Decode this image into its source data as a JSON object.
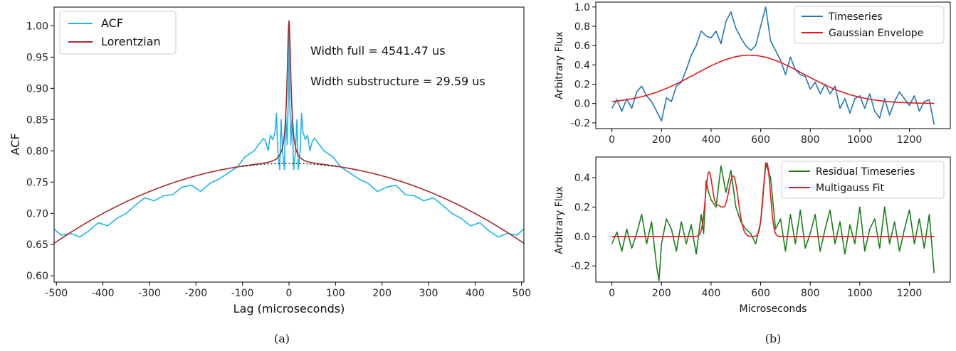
{
  "captions": {
    "a": "(a)",
    "b": "(b)"
  },
  "chart_data": [
    {
      "type": "line",
      "panel": "a",
      "xlabel": "Lag (microseconds)",
      "ylabel": "ACF",
      "xlim": [
        -505,
        505
      ],
      "ylim": [
        0.59,
        1.03
      ],
      "xticks": [
        -500,
        -400,
        -300,
        -200,
        -100,
        0,
        100,
        200,
        300,
        400,
        500
      ],
      "yticks": [
        0.6,
        0.65,
        0.7,
        0.75,
        0.8,
        0.85,
        0.9,
        0.95,
        1.0
      ],
      "legend": {
        "placement": "upper-left",
        "entries": [
          "ACF",
          "Lorentzian"
        ]
      },
      "annotations": [
        "Width full = 4541.47 us",
        "Width substructure = 29.59 us"
      ],
      "series": [
        {
          "name": "ACF",
          "color": "#1bb6ec",
          "x": [
            -505,
            -490,
            -470,
            -450,
            -430,
            -410,
            -390,
            -370,
            -350,
            -330,
            -310,
            -290,
            -270,
            -250,
            -230,
            -210,
            -190,
            -170,
            -150,
            -130,
            -110,
            -95,
            -85,
            -75,
            -65,
            -55,
            -50,
            -45,
            -40,
            -35,
            -30,
            -27,
            -24,
            -20,
            -17,
            -14,
            -10,
            -7,
            -4,
            -1,
            0,
            1,
            4,
            7,
            10,
            14,
            17,
            20,
            24,
            27,
            30,
            35,
            40,
            45,
            50,
            55,
            65,
            75,
            85,
            95,
            110,
            130,
            150,
            170,
            190,
            210,
            230,
            250,
            270,
            290,
            310,
            330,
            350,
            370,
            390,
            410,
            430,
            450,
            470,
            490,
            505
          ],
          "y": [
            0.675,
            0.665,
            0.668,
            0.662,
            0.672,
            0.685,
            0.68,
            0.692,
            0.7,
            0.713,
            0.725,
            0.72,
            0.728,
            0.73,
            0.742,
            0.745,
            0.735,
            0.748,
            0.755,
            0.765,
            0.775,
            0.79,
            0.795,
            0.8,
            0.81,
            0.82,
            0.815,
            0.8,
            0.825,
            0.818,
            0.83,
            0.86,
            0.8,
            0.77,
            0.85,
            0.8,
            0.77,
            0.86,
            0.81,
            0.9,
            1.0,
            0.9,
            0.81,
            0.86,
            0.77,
            0.8,
            0.85,
            0.77,
            0.8,
            0.86,
            0.83,
            0.818,
            0.825,
            0.8,
            0.815,
            0.82,
            0.81,
            0.8,
            0.795,
            0.79,
            0.775,
            0.765,
            0.755,
            0.748,
            0.735,
            0.742,
            0.745,
            0.73,
            0.728,
            0.72,
            0.725,
            0.713,
            0.7,
            0.692,
            0.68,
            0.685,
            0.672,
            0.662,
            0.668,
            0.665,
            0.675
          ]
        },
        {
          "name": "Lorentzian",
          "color": "#a52a2a",
          "model": "envelope_plus_lorentzian",
          "envelope_peak": 0.78,
          "envelope_at_505": 0.652,
          "lorentzian_amplitude": 0.228,
          "lorentzian_half_width": 5
        },
        {
          "name": "",
          "color": "#111111",
          "style": "dotted",
          "x": [
            -100,
            -50,
            0,
            50,
            100
          ],
          "y": [
            0.775,
            0.779,
            0.78,
            0.779,
            0.775
          ]
        }
      ]
    },
    {
      "type": "line",
      "panel": "b-top",
      "xlabel": "",
      "ylabel": "Arbitrary Flux",
      "xlim": [
        -65,
        1365
      ],
      "ylim": [
        -0.26,
        1.05
      ],
      "xticks": [
        0,
        200,
        400,
        600,
        800,
        1000,
        1200
      ],
      "yticks": [
        -0.2,
        0.0,
        0.2,
        0.4,
        0.6,
        0.8,
        1.0
      ],
      "legend": {
        "placement": "upper-right",
        "entries": [
          "Timeseries",
          "Gaussian Envelope"
        ]
      },
      "series": [
        {
          "name": "Timeseries",
          "color": "#1f77b4",
          "x": [
            0,
            20,
            40,
            60,
            80,
            100,
            120,
            140,
            160,
            180,
            200,
            220,
            240,
            260,
            280,
            300,
            320,
            340,
            360,
            380,
            400,
            420,
            440,
            460,
            480,
            500,
            520,
            540,
            560,
            580,
            600,
            620,
            640,
            660,
            680,
            700,
            720,
            740,
            760,
            780,
            800,
            820,
            840,
            860,
            880,
            900,
            920,
            940,
            960,
            980,
            1000,
            1020,
            1040,
            1060,
            1080,
            1100,
            1120,
            1140,
            1160,
            1180,
            1200,
            1220,
            1240,
            1260,
            1280,
            1300
          ],
          "y": [
            -0.05,
            0.04,
            -0.08,
            0.05,
            -0.05,
            0.12,
            0.18,
            0.08,
            0.02,
            -0.08,
            -0.18,
            0.06,
            0.02,
            0.18,
            0.22,
            0.35,
            0.5,
            0.6,
            0.75,
            0.7,
            0.68,
            0.75,
            0.62,
            0.85,
            0.95,
            0.78,
            0.68,
            0.6,
            0.55,
            0.6,
            0.8,
            1.0,
            0.65,
            0.55,
            0.45,
            0.3,
            0.48,
            0.35,
            0.3,
            0.28,
            0.15,
            0.22,
            0.1,
            0.2,
            0.1,
            0.18,
            -0.05,
            0.05,
            -0.1,
            0.05,
            0.08,
            -0.05,
            0.1,
            -0.08,
            -0.15,
            0.05,
            -0.12,
            0.02,
            0.12,
            0.05,
            -0.02,
            0.08,
            -0.08,
            0.02,
            0.04,
            -0.22
          ]
        },
        {
          "name": "Gaussian Envelope",
          "color": "#e31a1c",
          "model": "gaussian",
          "amplitude": 0.5,
          "center": 555,
          "sigma": 220
        }
      ]
    },
    {
      "type": "line",
      "panel": "b-bottom",
      "xlabel": "Microseconds",
      "ylabel": "Arbitrary Flux",
      "xlim": [
        -65,
        1365
      ],
      "ylim": [
        -0.31,
        0.54
      ],
      "xticks": [
        0,
        200,
        400,
        600,
        800,
        1000,
        1200
      ],
      "yticks": [
        -0.2,
        0.0,
        0.2,
        0.4
      ],
      "legend": {
        "placement": "upper-right",
        "entries": [
          "Residual Timeseries",
          "Multigauss Fit"
        ]
      },
      "series": [
        {
          "name": "Residual Timeseries",
          "color": "#1a7f1a",
          "x": [
            0,
            20,
            40,
            60,
            80,
            100,
            120,
            140,
            160,
            180,
            190,
            200,
            220,
            240,
            260,
            280,
            300,
            320,
            340,
            360,
            370,
            380,
            390,
            400,
            420,
            440,
            460,
            480,
            500,
            520,
            540,
            560,
            580,
            600,
            620,
            640,
            660,
            680,
            700,
            720,
            740,
            760,
            780,
            800,
            820,
            840,
            860,
            880,
            900,
            920,
            940,
            960,
            980,
            1000,
            1020,
            1040,
            1060,
            1080,
            1100,
            1120,
            1140,
            1160,
            1180,
            1200,
            1220,
            1240,
            1260,
            1280,
            1300
          ],
          "y": [
            -0.05,
            0.03,
            -0.1,
            0.05,
            -0.08,
            0.02,
            0.15,
            -0.05,
            0.1,
            -0.2,
            -0.3,
            -0.05,
            0.12,
            0.05,
            -0.1,
            0.1,
            -0.05,
            0.08,
            -0.12,
            0.15,
            0.02,
            0.38,
            0.3,
            0.25,
            0.2,
            0.48,
            0.3,
            0.45,
            0.2,
            0.1,
            0.05,
            0.02,
            -0.05,
            0.1,
            0.5,
            0.4,
            0.05,
            0.12,
            -0.1,
            0.15,
            -0.05,
            0.18,
            -0.08,
            0.02,
            0.15,
            -0.1,
            0.05,
            0.18,
            -0.05,
            0.1,
            -0.12,
            0.08,
            -0.05,
            0.2,
            -0.1,
            0.05,
            0.12,
            -0.08,
            0.2,
            -0.05,
            0.1,
            -0.1,
            0.05,
            0.18,
            -0.05,
            0.12,
            -0.08,
            0.15,
            -0.25
          ]
        },
        {
          "name": "Multigauss Fit",
          "color": "#e31a1c",
          "model": "sum_of_gaussians",
          "components": [
            {
              "amplitude": 0.38,
              "center": 390,
              "sigma": 14
            },
            {
              "amplitude": 0.2,
              "center": 430,
              "sigma": 25
            },
            {
              "amplitude": 0.4,
              "center": 490,
              "sigma": 20
            },
            {
              "amplitude": 0.5,
              "center": 625,
              "sigma": 14
            }
          ]
        }
      ]
    }
  ]
}
